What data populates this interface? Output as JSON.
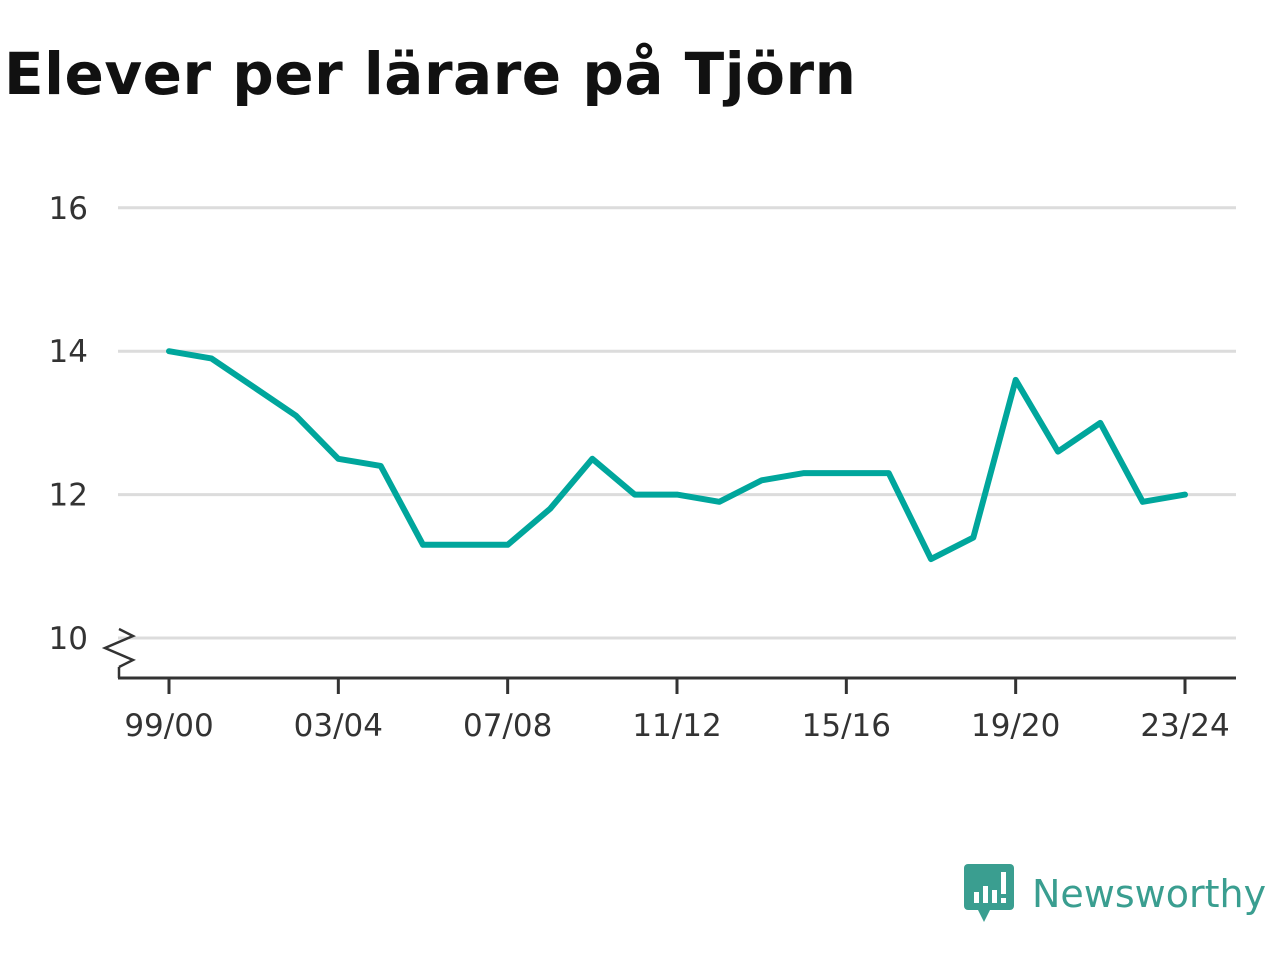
{
  "title": "Elever per lärare på Tjörn",
  "brand": {
    "name": "Newsworthy",
    "icon": "newsworthy-logo-icon",
    "color": "#3a9e90"
  },
  "chart_data": {
    "type": "line",
    "title": "Elever per lärare på Tjörn",
    "xlabel": "",
    "ylabel": "",
    "x": [
      "99/00",
      "00/01",
      "01/02",
      "02/03",
      "03/04",
      "04/05",
      "05/06",
      "06/07",
      "07/08",
      "08/09",
      "09/10",
      "10/11",
      "11/12",
      "12/13",
      "13/14",
      "14/15",
      "15/16",
      "16/17",
      "17/18",
      "18/19",
      "19/20",
      "20/21",
      "21/22",
      "22/23",
      "23/24"
    ],
    "x_tick_labels": [
      "99/00",
      "03/04",
      "07/08",
      "11/12",
      "15/16",
      "19/20",
      "23/24"
    ],
    "y_ticks": [
      10,
      12,
      14,
      16
    ],
    "ylim": [
      9.5,
      16
    ],
    "y_axis_break": true,
    "grid": true,
    "series": [
      {
        "color": "#00a69c",
        "values": [
          14.0,
          13.9,
          13.5,
          13.1,
          12.5,
          12.4,
          11.3,
          11.3,
          11.3,
          11.8,
          12.5,
          12.0,
          12.0,
          11.9,
          12.2,
          12.3,
          12.3,
          12.3,
          11.1,
          11.4,
          13.6,
          12.6,
          13.0,
          11.9,
          12.0
        ]
      }
    ]
  }
}
